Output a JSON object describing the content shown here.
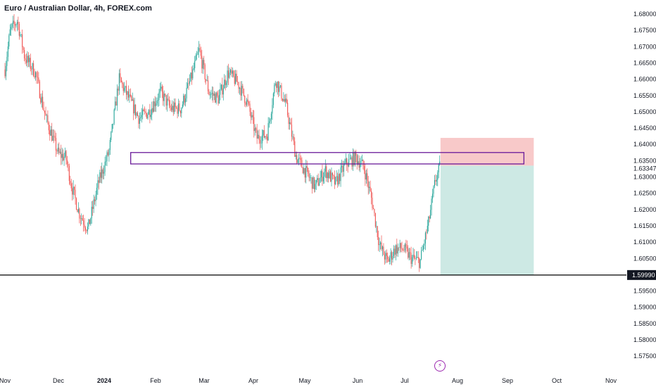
{
  "header": {
    "title": "Euro / Australian Dollar, 4h, FOREX.com"
  },
  "price_axis": {
    "ticks": [
      "1.68000",
      "1.67500",
      "1.67000",
      "1.66500",
      "1.66000",
      "1.65500",
      "1.65000",
      "1.64500",
      "1.64000",
      "1.63500",
      "1.63000",
      "1.62500",
      "1.62000",
      "1.61500",
      "1.61000",
      "1.60500",
      "1.59500",
      "1.59000",
      "1.58500",
      "1.58000",
      "1.57500"
    ],
    "current_tag": "1.63347",
    "line_tag": "1.59990"
  },
  "time_axis": {
    "labels": [
      "Nov",
      "Dec",
      "2024",
      "Feb",
      "Mar",
      "Apr",
      "May",
      "Jun",
      "Jul",
      "Aug",
      "Sep",
      "Oct",
      "Nov"
    ]
  },
  "colors": {
    "up": "#26a69a",
    "down": "#ef5350",
    "zone_border": "#6a1b9a",
    "stop_fill": "#f8c9c9",
    "target_fill": "#cde9e4",
    "line": "#000000"
  },
  "chart_data": {
    "type": "candlestick",
    "symbol": "Euro / Australian Dollar",
    "timeframe": "4h",
    "ylim": [
      1.575,
      1.681
    ],
    "path_anchors": [
      [
        "2023-11-01",
        1.663
      ],
      [
        "2023-11-04",
        1.675
      ],
      [
        "2023-11-08",
        1.678
      ],
      [
        "2023-11-12",
        1.667
      ],
      [
        "2023-11-18",
        1.662
      ],
      [
        "2023-11-24",
        1.648
      ],
      [
        "2023-12-01",
        1.637
      ],
      [
        "2023-12-06",
        1.636
      ],
      [
        "2023-12-10",
        1.627
      ],
      [
        "2023-12-15",
        1.619
      ],
      [
        "2023-12-21",
        1.614
      ],
      [
        "2023-12-28",
        1.628
      ],
      [
        "2024-01-04",
        1.638
      ],
      [
        "2024-01-10",
        1.66
      ],
      [
        "2024-01-16",
        1.654
      ],
      [
        "2024-01-22",
        1.648
      ],
      [
        "2024-01-28",
        1.65
      ],
      [
        "2024-02-04",
        1.656
      ],
      [
        "2024-02-10",
        1.651
      ],
      [
        "2024-02-16",
        1.651
      ],
      [
        "2024-02-22",
        1.66
      ],
      [
        "2024-02-27",
        1.669
      ],
      [
        "2024-03-04",
        1.656
      ],
      [
        "2024-03-10",
        1.654
      ],
      [
        "2024-03-16",
        1.662
      ],
      [
        "2024-03-22",
        1.659
      ],
      [
        "2024-03-28",
        1.653
      ],
      [
        "2024-04-03",
        1.642
      ],
      [
        "2024-04-09",
        1.643
      ],
      [
        "2024-04-14",
        1.66
      ],
      [
        "2024-04-20",
        1.652
      ],
      [
        "2024-04-26",
        1.636
      ],
      [
        "2024-05-01",
        1.632
      ],
      [
        "2024-05-07",
        1.627
      ],
      [
        "2024-05-13",
        1.632
      ],
      [
        "2024-05-19",
        1.628
      ],
      [
        "2024-05-25",
        1.634
      ],
      [
        "2024-05-31",
        1.636
      ],
      [
        "2024-06-05",
        1.633
      ],
      [
        "2024-06-10",
        1.623
      ],
      [
        "2024-06-15",
        1.609
      ],
      [
        "2024-06-20",
        1.604
      ],
      [
        "2024-06-25",
        1.608
      ],
      [
        "2024-06-30",
        1.608
      ],
      [
        "2024-07-05",
        1.605
      ],
      [
        "2024-07-10",
        1.604
      ],
      [
        "2024-07-15",
        1.616
      ],
      [
        "2024-07-19",
        1.629
      ],
      [
        "2024-07-22",
        1.6335
      ]
    ],
    "zone": {
      "x": [
        "2024-01-17",
        "2024-09-11"
      ],
      "y": [
        1.634,
        1.6375
      ]
    },
    "position": {
      "x": [
        "2024-07-22",
        "2024-09-17"
      ],
      "entry": 1.63347,
      "stop": 1.642,
      "target": 1.5999
    },
    "horizontal_line": 1.5999
  }
}
